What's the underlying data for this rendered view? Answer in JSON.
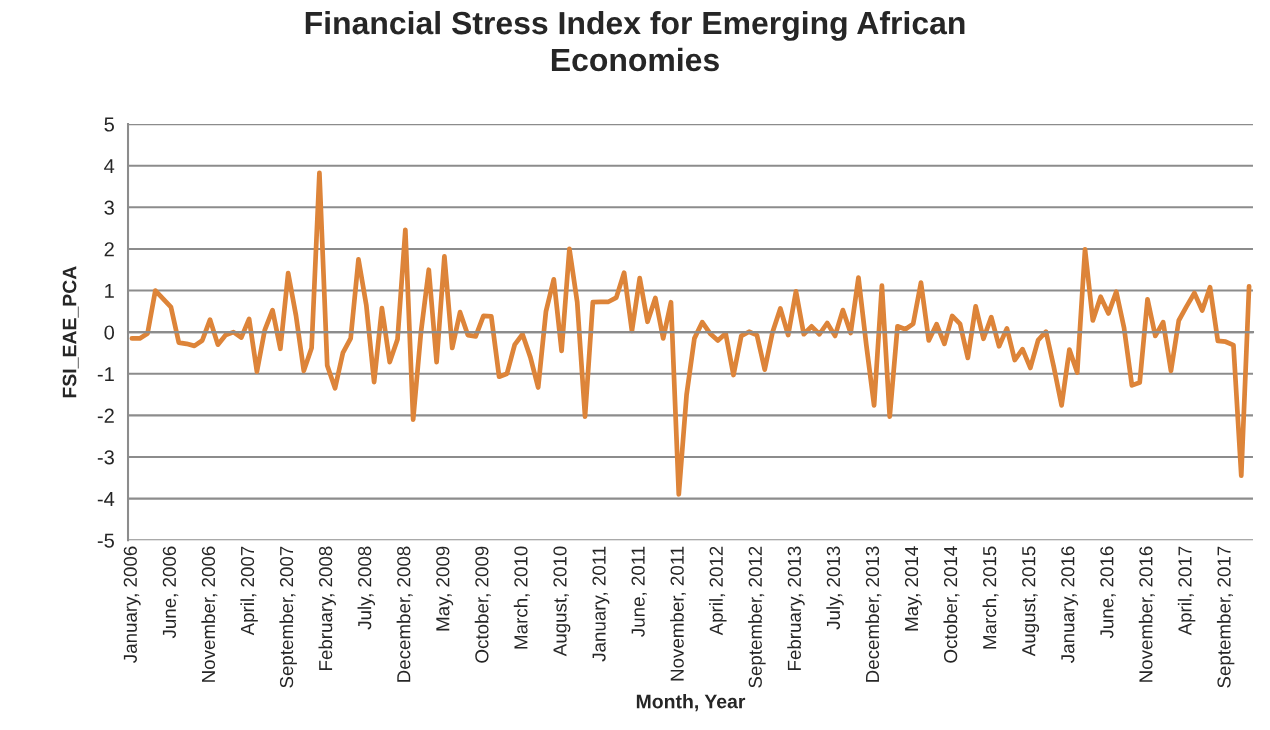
{
  "chart_data": {
    "type": "line",
    "title": "Financial Stress Index for Emerging African\nEconomies",
    "xlabel": "Month, Year",
    "ylabel": "FSI_EAE_PCA",
    "categories": [
      "January, 2006",
      null,
      null,
      null,
      null,
      "June, 2006",
      null,
      null,
      null,
      null,
      "November, 2006",
      null,
      null,
      null,
      null,
      "April, 2007",
      null,
      null,
      null,
      null,
      "September, 2007",
      null,
      null,
      null,
      null,
      "February, 2008",
      null,
      null,
      null,
      null,
      "July, 2008",
      null,
      null,
      null,
      null,
      "December, 2008",
      null,
      null,
      null,
      null,
      "May, 2009",
      null,
      null,
      null,
      null,
      "October, 2009",
      null,
      null,
      null,
      null,
      "March, 2010",
      null,
      null,
      null,
      null,
      "August, 2010",
      null,
      null,
      null,
      null,
      "January, 2011",
      null,
      null,
      null,
      null,
      "June, 2011",
      null,
      null,
      null,
      null,
      "November, 2011",
      null,
      null,
      null,
      null,
      "April, 2012",
      null,
      null,
      null,
      null,
      "September, 2012",
      null,
      null,
      null,
      null,
      "February, 2013",
      null,
      null,
      null,
      null,
      "July, 2013",
      null,
      null,
      null,
      null,
      "December, 2013",
      null,
      null,
      null,
      null,
      "May, 2014",
      null,
      null,
      null,
      null,
      "October, 2014",
      null,
      null,
      null,
      null,
      "March, 2015",
      null,
      null,
      null,
      null,
      "August, 2015",
      null,
      null,
      null,
      null,
      "January, 2016",
      null,
      null,
      null,
      null,
      "June, 2016",
      null,
      null,
      null,
      null,
      "November, 2016",
      null,
      null,
      null,
      null,
      "April, 2017",
      null,
      null,
      null,
      null,
      "September, 2017",
      null,
      null,
      null
    ],
    "series": [
      {
        "color": "#dd8439",
        "values": [
          -0.15,
          -0.15,
          -0.03,
          1.0,
          0.8,
          0.6,
          -0.25,
          -0.28,
          -0.33,
          -0.2,
          0.3,
          -0.3,
          -0.07,
          0.0,
          -0.13,
          0.32,
          -0.95,
          0.05,
          0.53,
          -0.4,
          1.42,
          0.4,
          -0.93,
          -0.38,
          3.83,
          -0.8,
          -1.35,
          -0.5,
          -0.15,
          1.75,
          0.65,
          -1.2,
          0.58,
          -0.72,
          -0.17,
          2.46,
          -2.1,
          0.0,
          1.5,
          -0.72,
          1.82,
          -0.38,
          0.48,
          -0.07,
          -0.1,
          0.39,
          0.38,
          -1.07,
          -1.0,
          -0.3,
          -0.05,
          -0.6,
          -1.33,
          0.5,
          1.27,
          -0.45,
          2.0,
          0.72,
          -2.03,
          0.72,
          0.73,
          0.73,
          0.83,
          1.43,
          0.03,
          1.3,
          0.25,
          0.82,
          -0.15,
          0.72,
          -3.9,
          -1.5,
          -0.15,
          0.24,
          -0.03,
          -0.2,
          -0.03,
          -1.03,
          -0.09,
          0.01,
          -0.07,
          -0.9,
          0.0,
          0.57,
          -0.07,
          0.98,
          -0.05,
          0.14,
          -0.05,
          0.22,
          -0.09,
          0.53,
          -0.02,
          1.31,
          -0.3,
          -1.76,
          1.12,
          -2.03,
          0.14,
          0.07,
          0.2,
          1.19,
          -0.2,
          0.19,
          -0.28,
          0.39,
          0.2,
          -0.62,
          0.62,
          -0.16,
          0.36,
          -0.34,
          0.09,
          -0.67,
          -0.41,
          -0.86,
          -0.19,
          0.01,
          -0.83,
          -1.76,
          -0.42,
          -0.97,
          1.99,
          0.28,
          0.85,
          0.45,
          0.97,
          0.1,
          -1.28,
          -1.21,
          0.79,
          -0.09,
          0.24,
          -0.93,
          0.28,
          0.62,
          0.94,
          0.52,
          1.08,
          -0.21,
          -0.23,
          -0.31,
          -3.45,
          1.1
        ]
      }
    ],
    "ylim": [
      -5,
      5
    ],
    "yticks": [
      -5,
      -4,
      -3,
      -2,
      -1,
      0,
      1,
      2,
      3,
      4,
      5
    ],
    "grid": "y"
  }
}
